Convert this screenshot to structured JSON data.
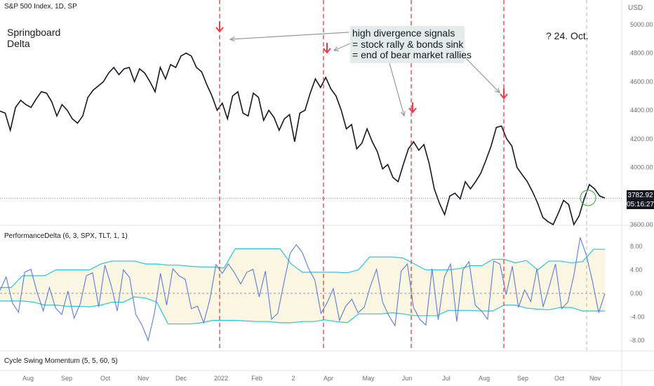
{
  "header": {
    "title": "S&P 500 Index, 1D, SP",
    "currency": "USD"
  },
  "annotations": {
    "left": [
      "Springboard",
      "Delta"
    ],
    "callout": [
      "high divergence signals",
      "= stock rally & bonds sink",
      "= end of bear market rallies"
    ],
    "right": "? 24. Oct."
  },
  "price_label": {
    "value": "3782.92",
    "countdown": "05:16:27"
  },
  "panes": {
    "indicator1": "PerformanceDelta (6, 3, SPX, TLT, 1, 1)",
    "indicator2": "Cycle Swing Momentum (5, 5, 60, 5)"
  },
  "colors": {
    "price_line": "#131722",
    "signal": "#f23645",
    "delta_line": "#5b7be0",
    "band": "#26c6da",
    "band_fill": "#fbf6e1",
    "callout_bg": "#e3ecea"
  },
  "chart_data": [
    {
      "type": "line",
      "title": "S&P 500 Index, 1D, SP",
      "y_ticks": [
        3600,
        3800,
        4000,
        4200,
        4400,
        4600,
        4800,
        5000
      ],
      "y_tick_labels": [
        "3600.00",
        "3800.00",
        "4000.00",
        "4200.00",
        "4400.00",
        "4600.00",
        "4800.00",
        "5000.00"
      ],
      "x_labels": [
        "Aug",
        "Sep",
        "Oct",
        "Nov",
        "Dec",
        "2022",
        "Feb",
        "2",
        "Apr",
        "May",
        "Jun",
        "Jul",
        "Aug",
        "Sep",
        "Oct",
        "Nov"
      ],
      "series": [
        {
          "values": [
            4395,
            4380,
            4260,
            4420,
            4470,
            4440,
            4420,
            4480,
            4530,
            4520,
            4460,
            4360,
            4440,
            4400,
            4340,
            4310,
            4360,
            4490,
            4540,
            4570,
            4600,
            4660,
            4700,
            4650,
            4690,
            4700,
            4600,
            4690,
            4660,
            4600,
            4530,
            4700,
            4620,
            4720,
            4700,
            4780,
            4800,
            4780,
            4700,
            4670,
            4580,
            4500,
            4400,
            4450,
            4340,
            4500,
            4530,
            4380,
            4360,
            4520,
            4490,
            4330,
            4400,
            4350,
            4260,
            4340,
            4370,
            4180,
            4380,
            4400,
            4520,
            4620,
            4560,
            4630,
            4550,
            4500,
            4400,
            4270,
            4300,
            4130,
            4170,
            4270,
            4180,
            4110,
            3990,
            4020,
            3930,
            3900,
            4020,
            4130,
            4180,
            4120,
            4160,
            4030,
            3850,
            3750,
            3670,
            3800,
            3820,
            3780,
            3900,
            3850,
            3900,
            3960,
            4050,
            4150,
            4280,
            4290,
            4200,
            4150,
            4000,
            3950,
            3900,
            3830,
            3750,
            3650,
            3620,
            3600,
            3680,
            3770,
            3740,
            3600,
            3660,
            3780,
            3880,
            3850,
            3800,
            3785
          ]
        }
      ],
      "markers": [
        "red arrows at Jan, late Mar, early Jun, mid Aug"
      ],
      "last_value": 3782.92,
      "ylim": [
        3600,
        5000
      ]
    },
    {
      "type": "line",
      "title": "PerformanceDelta (6, 3, SPX, TLT, 1, 1)",
      "y_ticks": [
        -8,
        -4,
        0,
        4,
        8
      ],
      "y_tick_labels": [
        "-8.00",
        "-4.00",
        "0.00",
        "4.00",
        "8.00"
      ],
      "series": [
        {
          "values": [
            0.5,
            2.8,
            -1.6,
            -3.2,
            3.6,
            4.1,
            0.2,
            -3.0,
            1.0,
            -2.5,
            -3.6,
            0.4,
            -4.2,
            -1.8,
            3.0,
            3.5,
            -2.3,
            4.8,
            1.4,
            -3.0,
            4.0,
            2.7,
            -3.6,
            -5.4,
            -8.0,
            -3.5,
            3.4,
            -2.0,
            4.2,
            3.0,
            2.4,
            -2.6,
            -2.2,
            -5.0,
            -1.0,
            4.9,
            3.4,
            5.0,
            3.5,
            1.6,
            3.6,
            4.1,
            -0.6,
            3.8,
            -4.4,
            -3.4,
            1.8,
            6.8,
            8.3,
            6.9,
            4.2,
            2.3,
            -3.4,
            -1.6,
            0.8,
            -4.6,
            -2.2,
            -1.0,
            -3.3,
            -2.4,
            1.2,
            4.1,
            -1.5,
            -3.8,
            -5.5,
            3.8,
            5.0,
            -2.4,
            -4.4,
            -5.4,
            4.2,
            -4.5,
            2.8,
            5.0,
            -4.8,
            4.0,
            5.4,
            -2.0,
            -3.0,
            -4.4,
            5.5,
            5.0,
            -0.2,
            4.6,
            -2.4,
            0.6,
            -1.4,
            4.2,
            -2.3,
            1.2,
            5.0,
            -2.6,
            -1.5,
            3.2,
            9.5,
            6.5,
            2.0,
            -3.3,
            0.0
          ]
        }
      ],
      "band_upper": [
        1.0,
        1.0,
        3.0,
        3.0,
        3.0,
        4.0,
        4.0,
        4.0,
        4.0,
        5.0,
        5.5,
        5.5,
        5.5,
        5.0,
        5.0,
        4.8,
        4.8,
        4.6,
        4.5,
        4.5,
        4.3,
        7.6,
        7.6,
        7.6,
        7.6,
        7.6,
        5.0,
        3.6,
        3.6,
        3.6,
        3.6,
        3.5,
        4.0,
        6.2,
        6.2,
        6.2,
        6.0,
        5.0,
        4.0,
        4.0,
        4.0,
        4.2,
        4.7,
        4.7,
        5.8,
        5.8,
        5.2,
        5.6,
        4.0,
        5.5,
        5.5,
        5.2,
        5.4,
        7.5,
        7.5
      ],
      "band_lower": [
        -1.3,
        -1.3,
        -1.3,
        -1.5,
        -2.0,
        -2.0,
        -2.2,
        -2.2,
        -2.3,
        -2.0,
        -1.5,
        -1.5,
        -0.6,
        -0.8,
        -1.5,
        -5.2,
        -5.2,
        -5.2,
        -5.0,
        -4.6,
        -4.6,
        -4.6,
        -4.7,
        -4.8,
        -4.8,
        -5.0,
        -5.0,
        -4.8,
        -4.8,
        -4.5,
        -4.8,
        -5.0,
        -3.5,
        -3.5,
        -3.5,
        -3.3,
        -3.5,
        -3.8,
        -3.8,
        -3.8,
        -2.9,
        -2.9,
        -2.9,
        -3.0,
        -3.0,
        -2.0,
        -2.0,
        -2.5,
        -2.7,
        -2.8,
        -2.4,
        -2.4,
        -3.0,
        -3.0,
        -3.0
      ],
      "ylim": [
        -9,
        10
      ]
    }
  ]
}
